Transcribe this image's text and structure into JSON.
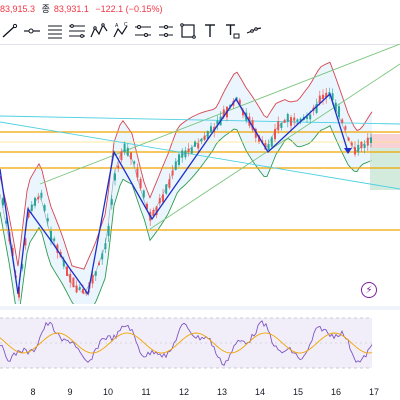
{
  "quote": {
    "close_fragment": "83,915.3",
    "close_label": "종",
    "close_value": "83,931.1",
    "change": "−122.1 (−0.15%)"
  },
  "toolbar": {
    "tools": [
      {
        "name": "trend-line-tool-icon"
      },
      {
        "name": "horizontal-ray-tool-icon"
      },
      {
        "name": "parallel-channel-tool-icon"
      },
      {
        "name": "fib-retracement-tool-icon"
      },
      {
        "name": "zigzag-pattern-tool-icon"
      },
      {
        "name": "abcd-pattern-tool-icon",
        "text": "A C B D"
      },
      {
        "name": "long-position-tool-icon"
      },
      {
        "name": "rectangle-measure-tool-icon"
      },
      {
        "name": "rectangle-tool-icon"
      },
      {
        "name": "text-tool-icon",
        "text": "T"
      },
      {
        "name": "anchored-text-tool-icon",
        "text": "T"
      },
      {
        "name": "path-tool-icon"
      }
    ]
  },
  "time_axis": {
    "labels": [
      "8",
      "9",
      "10",
      "11",
      "12",
      "13",
      "14",
      "15",
      "16",
      "17"
    ]
  },
  "colors": {
    "up": "#26a69a",
    "down": "#ef5350",
    "bb_upper": "#d64550",
    "bb_lower": "#2e9b4e",
    "bb_fill": "#e3f2fd",
    "zigzag": "#1e2fc9",
    "level": "#f0a500",
    "trend_green": "#7bc67e",
    "trend_cyan": "#4dd0e1",
    "rsi_line": "#7e57c2",
    "rsi_ma": "#f0a500",
    "rsi_band": "#ede7f6"
  }
}
